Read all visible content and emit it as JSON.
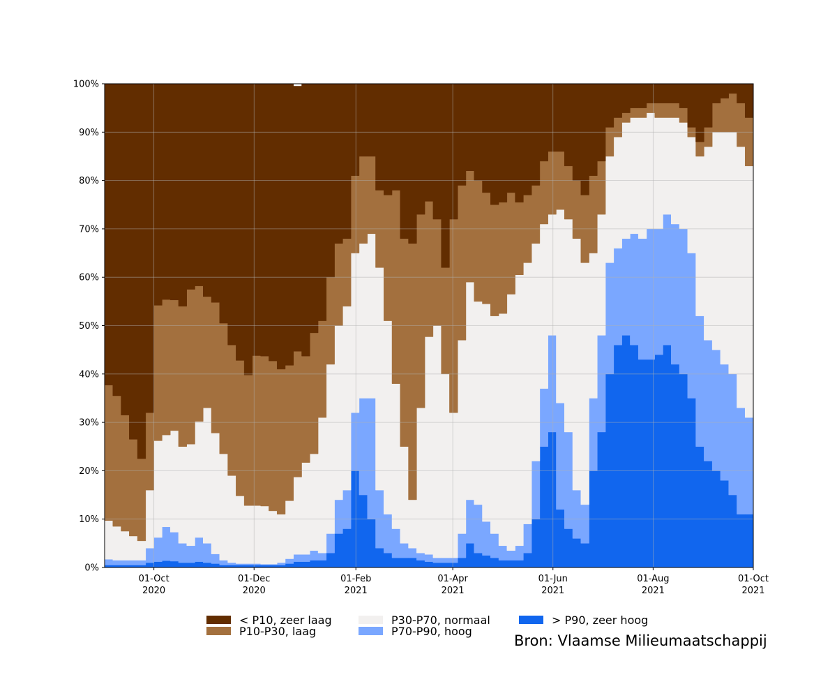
{
  "chart_data": {
    "type": "area",
    "stacked": true,
    "percent": true,
    "ylim": [
      0,
      100
    ],
    "y_ticks": [
      "0%",
      "10%",
      "20%",
      "30%",
      "40%",
      "50%",
      "60%",
      "70%",
      "80%",
      "90%",
      "100%"
    ],
    "x_range": [
      "2020-09-01",
      "2021-10-01"
    ],
    "x_ticks": [
      {
        "date": "2020-10-01",
        "line1": "01-Oct",
        "line2": "2020"
      },
      {
        "date": "2020-12-01",
        "line1": "01-Dec",
        "line2": "2020"
      },
      {
        "date": "2021-02-01",
        "line1": "01-Feb",
        "line2": "2021"
      },
      {
        "date": "2021-04-01",
        "line1": "01-Apr",
        "line2": "2021"
      },
      {
        "date": "2021-06-01",
        "line1": "01-Jun",
        "line2": "2021"
      },
      {
        "date": "2021-08-01",
        "line1": "01-Aug",
        "line2": "2021"
      },
      {
        "date": "2021-10-01",
        "line1": "01-Oct",
        "line2": "2021"
      }
    ],
    "grid": true,
    "x": [
      "2020-09-01",
      "2020-09-06",
      "2020-09-11",
      "2020-09-16",
      "2020-09-21",
      "2020-09-26",
      "2020-10-01",
      "2020-10-06",
      "2020-10-11",
      "2020-10-16",
      "2020-10-21",
      "2020-10-26",
      "2020-10-31",
      "2020-11-05",
      "2020-11-10",
      "2020-11-15",
      "2020-11-20",
      "2020-11-25",
      "2020-11-30",
      "2020-12-05",
      "2020-12-10",
      "2020-12-15",
      "2020-12-20",
      "2020-12-25",
      "2020-12-30",
      "2021-01-04",
      "2021-01-09",
      "2021-01-14",
      "2021-01-19",
      "2021-01-24",
      "2021-01-29",
      "2021-02-03",
      "2021-02-08",
      "2021-02-13",
      "2021-02-18",
      "2021-02-23",
      "2021-02-28",
      "2021-03-05",
      "2021-03-10",
      "2021-03-15",
      "2021-03-20",
      "2021-03-25",
      "2021-03-30",
      "2021-04-04",
      "2021-04-09",
      "2021-04-14",
      "2021-04-19",
      "2021-04-24",
      "2021-04-29",
      "2021-05-04",
      "2021-05-09",
      "2021-05-14",
      "2021-05-19",
      "2021-05-24",
      "2021-05-29",
      "2021-06-03",
      "2021-06-08",
      "2021-06-13",
      "2021-06-18",
      "2021-06-23",
      "2021-06-28",
      "2021-07-03",
      "2021-07-08",
      "2021-07-13",
      "2021-07-18",
      "2021-07-23",
      "2021-07-28",
      "2021-08-02",
      "2021-08-07",
      "2021-08-12",
      "2021-08-17",
      "2021-08-22",
      "2021-08-27",
      "2021-09-01",
      "2021-09-06",
      "2021-09-11",
      "2021-09-16",
      "2021-09-21",
      "2021-09-26",
      "2021-10-01"
    ],
    "series": [
      {
        "name": "> P90, zeer hoog",
        "color": "#1166ee",
        "values": [
          0.5,
          0.5,
          0.5,
          0.5,
          0.5,
          1.0,
          1.2,
          1.4,
          1.3,
          1.0,
          1.0,
          1.2,
          1.0,
          0.8,
          0.5,
          0.5,
          0.5,
          0.5,
          0.5,
          0.5,
          0.5,
          0.5,
          0.8,
          1.2,
          1.2,
          1.5,
          1.5,
          3.0,
          7.0,
          8.0,
          20.0,
          15.0,
          10.0,
          4.0,
          3.0,
          2.0,
          2.0,
          2.0,
          1.5,
          1.2,
          1.0,
          1.0,
          1.0,
          2.0,
          5.0,
          3.0,
          2.5,
          2.0,
          1.5,
          1.5,
          1.5,
          3.0,
          10.0,
          25.0,
          28.0,
          12.0,
          8.0,
          6.0,
          5.0,
          20.0,
          28.0,
          40.0,
          46.0,
          48.0,
          46.0,
          43.0,
          43.0,
          44.0,
          46.0,
          42.0,
          40.0,
          35.0,
          25.0,
          22.0,
          20.0,
          18.0,
          15.0,
          11.0,
          11.0,
          13.0
        ]
      },
      {
        "name": "P70-P90, hoog",
        "color": "#7aa7ff",
        "values": [
          1.2,
          1.0,
          1.0,
          1.0,
          1.0,
          3.0,
          5.0,
          7.0,
          6.0,
          4.0,
          3.5,
          5.0,
          4.0,
          2.0,
          1.0,
          0.5,
          0.3,
          0.3,
          0.3,
          0.2,
          0.2,
          0.5,
          1.0,
          1.5,
          1.5,
          2.0,
          1.5,
          4.0,
          7.0,
          8.0,
          12.0,
          20.0,
          25.0,
          12.0,
          8.0,
          6.0,
          3.0,
          2.0,
          1.5,
          1.5,
          1.0,
          1.0,
          1.0,
          5.0,
          9.0,
          10.0,
          7.0,
          5.0,
          3.0,
          2.0,
          3.0,
          6.0,
          12.0,
          12.0,
          20.0,
          22.0,
          20.0,
          10.0,
          8.0,
          15.0,
          20.0,
          23.0,
          20.0,
          20.0,
          23.0,
          25.0,
          27.0,
          26.0,
          27.0,
          29.0,
          30.0,
          30.0,
          27.0,
          25.0,
          25.0,
          24.0,
          25.0,
          22.0,
          20.0,
          18.0
        ]
      },
      {
        "name": "P30-P70, normaal",
        "color": "#f2f0ef",
        "values": [
          8.0,
          7.0,
          6.0,
          5.0,
          4.0,
          12.0,
          20.0,
          19.0,
          21.0,
          20.0,
          21.0,
          24.0,
          28.0,
          25.0,
          22.0,
          18.0,
          14.0,
          12.0,
          12.0,
          12.0,
          11.0,
          10.0,
          12.0,
          16.0,
          19.0,
          20.0,
          28.0,
          35.0,
          36.0,
          38.0,
          33.0,
          32.0,
          34.0,
          46.0,
          40.0,
          30.0,
          20.0,
          10.0,
          30.0,
          45.0,
          48.0,
          38.0,
          30.0,
          40.0,
          45.0,
          42.0,
          45.0,
          45.0,
          48.0,
          53.0,
          56.0,
          54.0,
          45.0,
          34.0,
          25.0,
          40.0,
          44.0,
          52.0,
          50.0,
          30.0,
          25.0,
          22.0,
          23.0,
          24.0,
          24.0,
          25.0,
          24.0,
          23.0,
          20.0,
          22.0,
          22.0,
          24.0,
          33.0,
          40.0,
          45.0,
          48.0,
          50.0,
          54.0,
          52.0,
          51.0
        ]
      },
      {
        "name": "P10-P30, laag",
        "color": "#a3703e",
        "values": [
          28.0,
          27.0,
          24.0,
          20.0,
          17.0,
          16.0,
          28.0,
          28.0,
          27.0,
          29.0,
          32.0,
          28.0,
          23.0,
          27.0,
          27.0,
          27.0,
          28.0,
          27.0,
          31.0,
          31.0,
          31.0,
          30.0,
          28.0,
          26.0,
          22.0,
          25.0,
          20.0,
          18.0,
          17.0,
          14.0,
          16.0,
          18.0,
          16.0,
          16.0,
          26.0,
          40.0,
          43.0,
          53.0,
          40.0,
          28.0,
          22.0,
          22.0,
          40.0,
          32.0,
          23.0,
          25.0,
          23.0,
          23.0,
          23.0,
          21.0,
          15.0,
          14.0,
          12.0,
          13.0,
          13.0,
          12.0,
          11.0,
          12.0,
          14.0,
          16.0,
          11.0,
          6.0,
          4.0,
          2.0,
          2.0,
          2.0,
          2.0,
          3.0,
          3.0,
          3.0,
          3.0,
          2.0,
          3.0,
          4.0,
          6.0,
          7.0,
          8.0,
          9.0,
          10.0,
          12.0
        ]
      },
      {
        "name": "< P10, zeer laag",
        "color": "#622d00",
        "values": [
          62.3,
          64.5,
          68.5,
          73.5,
          77.5,
          68.0,
          45.8,
          44.6,
          44.7,
          46.0,
          42.5,
          41.8,
          44.0,
          45.2,
          49.5,
          54.0,
          57.2,
          60.2,
          56.2,
          56.3,
          57.3,
          59.0,
          58.2,
          54.8,
          56.3,
          51.5,
          49.0,
          40.0,
          33.0,
          32.0,
          19.0,
          15.0,
          15.0,
          22.0,
          23.0,
          22.0,
          32.0,
          33.0,
          27.0,
          24.3,
          28.0,
          38.0,
          28.0,
          21.0,
          18.0,
          20.0,
          22.5,
          25.0,
          24.5,
          22.5,
          24.5,
          23.0,
          21.0,
          16.0,
          14.0,
          14.0,
          17.0,
          20.0,
          23.0,
          19.0,
          16.0,
          9.0,
          7.0,
          6.0,
          5.0,
          5.0,
          4.0,
          4.0,
          4.0,
          4.0,
          5.0,
          9.0,
          12.0,
          9.0,
          4.0,
          3.0,
          2.0,
          4.0,
          7.0,
          6.0
        ]
      }
    ]
  },
  "legend": [
    {
      "label": "< P10, zeer laag",
      "color": "#622d00"
    },
    {
      "label": "P10-P30, laag",
      "color": "#a3703e"
    },
    {
      "label": "P30-P70, normaal",
      "color": "#f2f0ef"
    },
    {
      "label": "P70-P90, hoog",
      "color": "#7aa7ff"
    },
    {
      "label": "> P90, zeer hoog",
      "color": "#1166ee"
    }
  ],
  "source": "Bron: Vlaamse Milieumaatschappij"
}
